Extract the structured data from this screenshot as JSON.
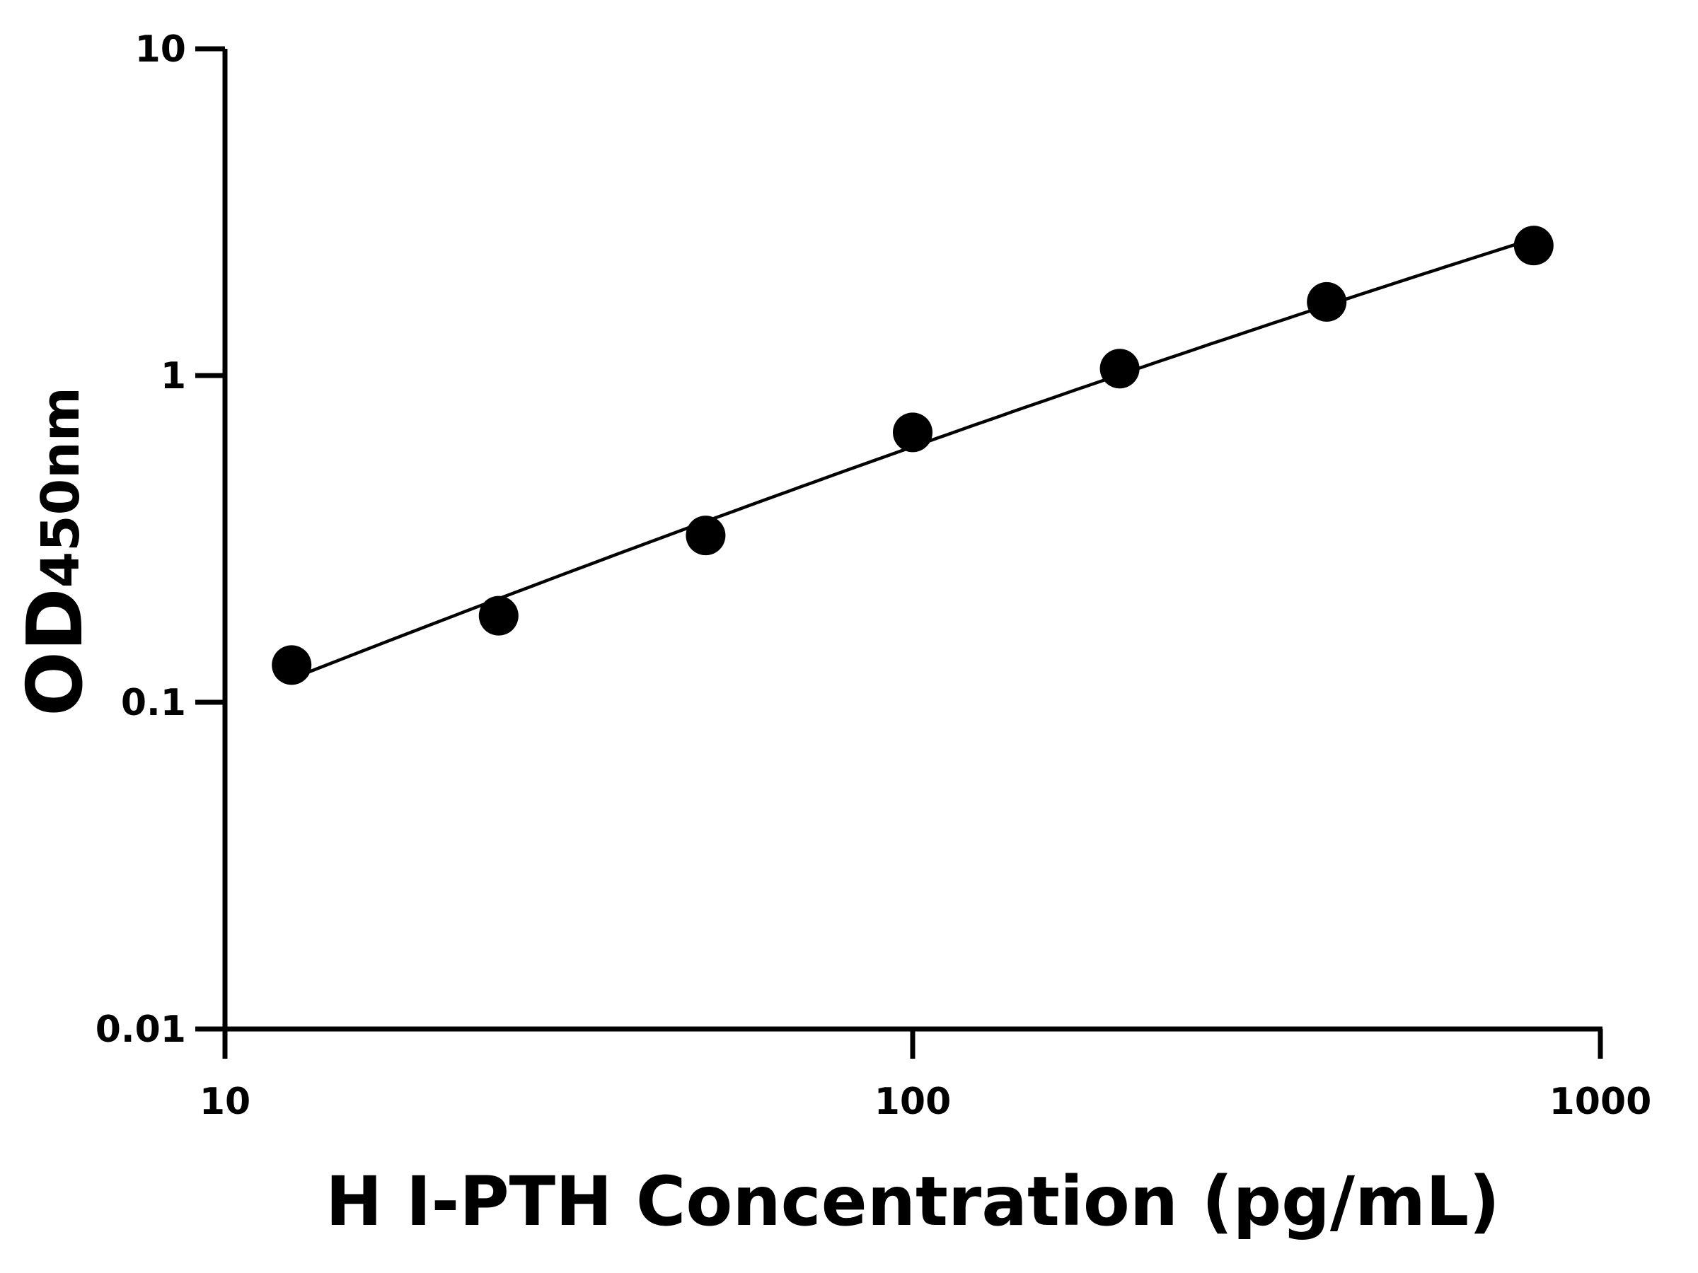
{
  "chart_data": {
    "type": "scatter",
    "title": "",
    "xlabel": "H I-PTH Concentration (pg/mL)",
    "ylabel_main": "OD",
    "ylabel_sub": "450nm",
    "x_scale": "log",
    "y_scale": "log",
    "xlim": [
      10,
      1000
    ],
    "ylim": [
      0.01,
      10
    ],
    "x_ticks": [
      "10",
      "100",
      "1000"
    ],
    "y_ticks": [
      "0.01",
      "0.1",
      "1",
      "10"
    ],
    "grid": false,
    "legend": "none",
    "color": "#000000",
    "points": [
      {
        "x": 12.5,
        "y": 0.13
      },
      {
        "x": 25,
        "y": 0.184
      },
      {
        "x": 50,
        "y": 0.324
      },
      {
        "x": 100,
        "y": 0.67
      },
      {
        "x": 200,
        "y": 1.05
      },
      {
        "x": 400,
        "y": 1.68
      },
      {
        "x": 800,
        "y": 2.5
      }
    ],
    "fit_curve": true
  }
}
